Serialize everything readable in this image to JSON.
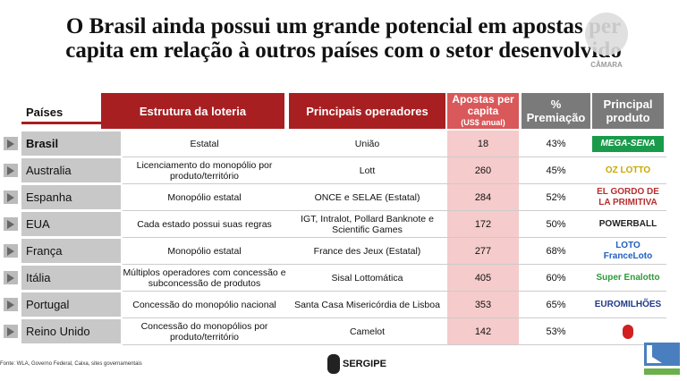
{
  "title": {
    "line1": "O Brasil ainda possui um grande potencial em apostas per",
    "line2": "capita em relação à outros países com o setor desenvolvido"
  },
  "watermark": {
    "label": "CÂMARA"
  },
  "headers": {
    "paises": "Países",
    "estrutura": "Estrutura da loteria",
    "operadores": "Principais operadores",
    "apostas": "Apostas per capita",
    "apostas_unit": "(US$ anual)",
    "premiacao": "% Premiação",
    "produto": "Principal produto"
  },
  "colors": {
    "red": "#a81f22",
    "pink": "#d9585a",
    "grey": "#7a7a7a"
  },
  "rows": [
    {
      "pais": "Brasil",
      "estrutura": "Estatal",
      "operadores": "União",
      "apostas": "18",
      "premiacao": "43%",
      "produto": "MEGA-SENA",
      "logo_color": "#1a9b4b"
    },
    {
      "pais": "Australia",
      "estrutura": "Licenciamento do monopólio por produto/território",
      "operadores": "Lott",
      "apostas": "260",
      "premiacao": "45%",
      "produto": "OZ LOTTO",
      "logo_color": "#c9a800"
    },
    {
      "pais": "Espanha",
      "estrutura": "Monopólio estatal",
      "operadores": "ONCE e SELAE (Estatal)",
      "apostas": "284",
      "premiacao": "52%",
      "produto": "EL GORDO DE LA PRIMITIVA",
      "logo_color": "#b5302f"
    },
    {
      "pais": "EUA",
      "estrutura": "Cada estado possui suas regras",
      "operadores": "IGT, Intralot, Pollard Banknote e Scientific Games",
      "apostas": "172",
      "premiacao": "50%",
      "produto": "POWERBALL",
      "logo_color": "#222222"
    },
    {
      "pais": "França",
      "estrutura": "Monopólio estatal",
      "operadores": "France des Jeux (Estatal)",
      "apostas": "277",
      "premiacao": "68%",
      "produto": "LOTO FranceLoto",
      "logo_color": "#1f5fbf"
    },
    {
      "pais": "Itália",
      "estrutura": "Múltiplos operadores com concessão e subconcessão de produtos",
      "operadores": "Sisal Lottomática",
      "apostas": "405",
      "premiacao": "60%",
      "produto": "Super Enalotto",
      "logo_color": "#2e9a3a"
    },
    {
      "pais": "Portugal",
      "estrutura": "Concessão do monopólio nacional",
      "operadores": "Santa Casa Misericórdia de Lisboa",
      "apostas": "353",
      "premiacao": "65%",
      "produto": "EUROMILHÕES",
      "logo_color": "#1f3a8a"
    },
    {
      "pais": "Reino Unido",
      "estrutura": "Concessão do monopólios por produto/território",
      "operadores": "Camelot",
      "apostas": "142",
      "premiacao": "53%",
      "produto": "",
      "logo_color": "#d02020"
    }
  ],
  "footer": {
    "source": "Fonte: WLA, Governo Federal, Caixa, sites governamentais",
    "sergipe": "SERGIPE"
  }
}
